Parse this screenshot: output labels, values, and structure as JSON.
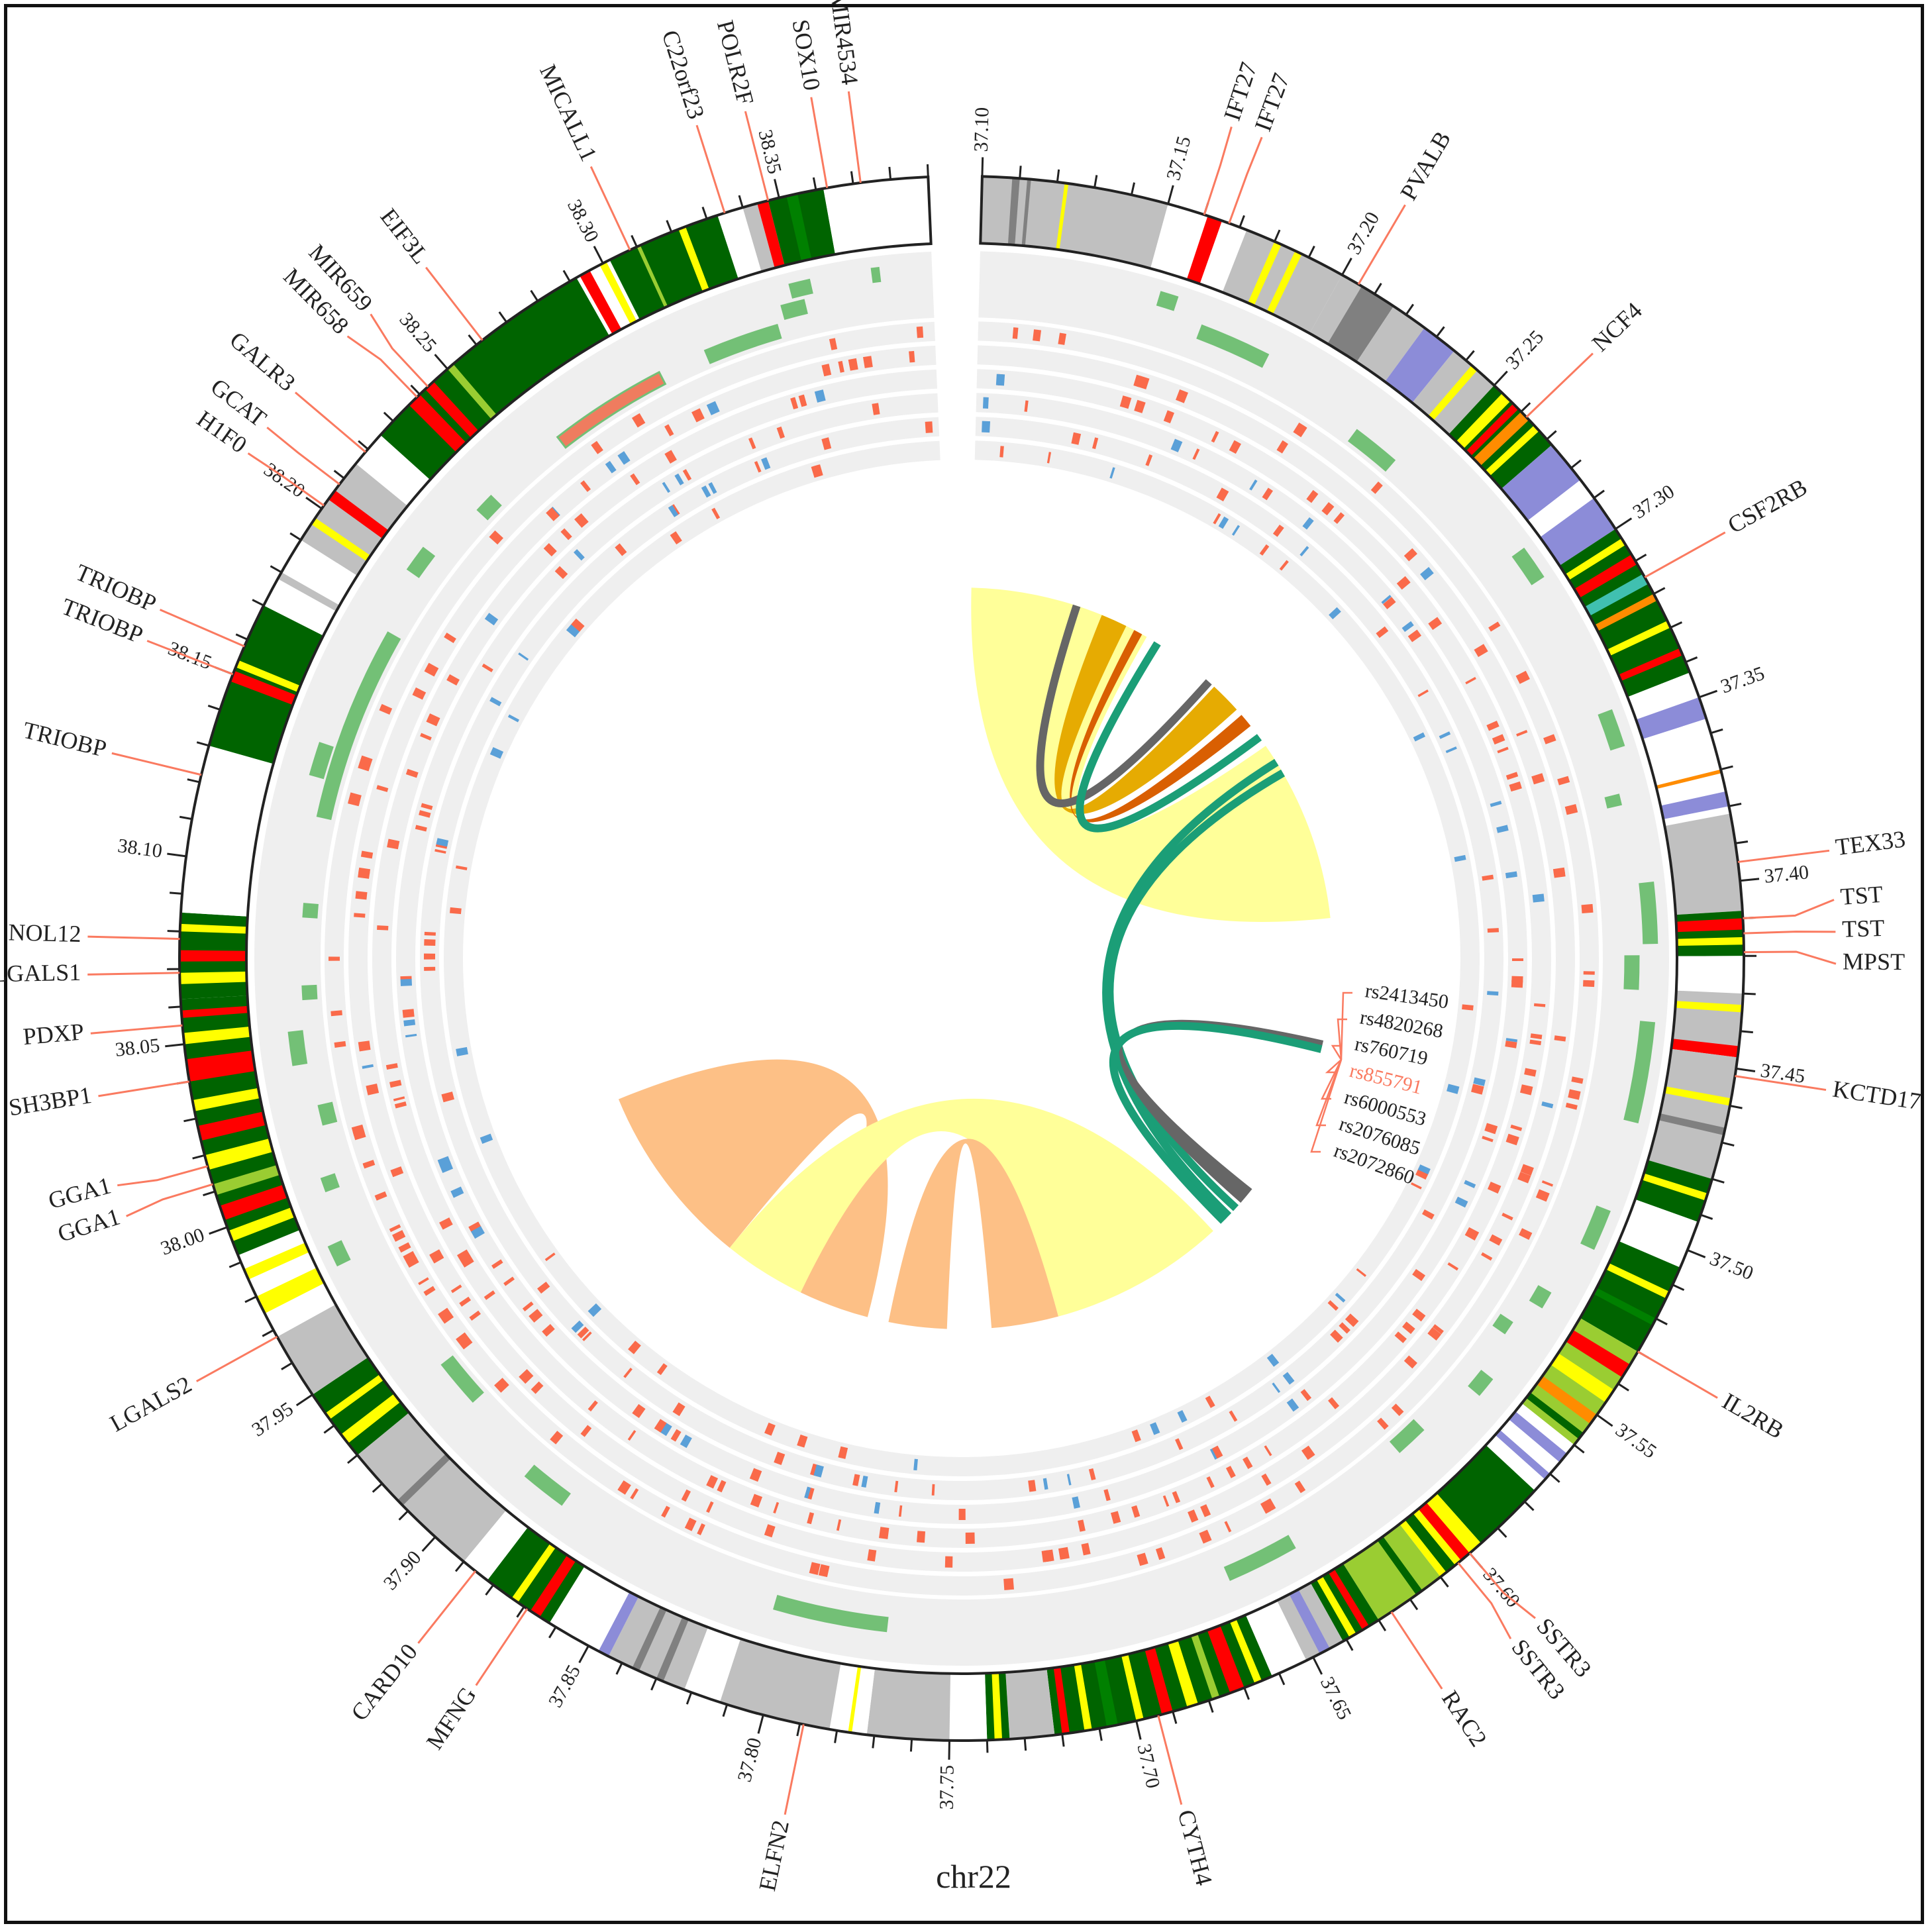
{
  "chromosome": "chr22",
  "axis": {
    "start": 37.1,
    "end": 38.39,
    "tick_step": 0.01,
    "label_step": 0.05,
    "tick_labels": [
      "37.10",
      "37.15",
      "37.20",
      "37.25",
      "37.30",
      "37.35",
      "37.40",
      "37.45",
      "37.50",
      "37.55",
      "37.60",
      "37.65",
      "37.70",
      "37.75",
      "37.80",
      "37.85",
      "37.90",
      "37.95",
      "38.00",
      "38.05",
      "38.10",
      "38.15",
      "38.20",
      "38.25",
      "38.30",
      "38.35"
    ]
  },
  "colors": {
    "gray": "#c0c0c0",
    "darkgray": "#808080",
    "white": "#ffffff",
    "green": "#006400",
    "green2": "#008000",
    "lime": "#9acd32",
    "yellow": "#ffff00",
    "red": "#ff0000",
    "orange": "#ff8c00",
    "blue": "#8c8cd8",
    "teal": "#40c0b0",
    "track_bg": "#efefef",
    "highlight_bar": "#66bb6a",
    "snv_red": "#fa6a4a",
    "snv_blue": "#5aa0d8",
    "label_line": "#fa7a60"
  },
  "genes": [
    {
      "name": "IFT27",
      "pos": 37.16
    },
    {
      "name": "IFT27",
      "pos": 37.167
    },
    {
      "name": "PVALB",
      "pos": 37.205
    },
    {
      "name": "NCF4",
      "pos": 37.262
    },
    {
      "name": "CSF2RB",
      "pos": 37.315
    },
    {
      "name": "TEX33",
      "pos": 37.395
    },
    {
      "name": "TST",
      "pos": 37.41
    },
    {
      "name": "TST",
      "pos": 37.414
    },
    {
      "name": "MPST",
      "pos": 37.419
    },
    {
      "name": "KCTD17",
      "pos": 37.452
    },
    {
      "name": "IL2RB",
      "pos": 37.53
    },
    {
      "name": "SSTR3",
      "pos": 37.6
    },
    {
      "name": "SSTR3",
      "pos": 37.604
    },
    {
      "name": "RAC2",
      "pos": 37.626
    },
    {
      "name": "CYTH4",
      "pos": 37.694
    },
    {
      "name": "ELFN2",
      "pos": 37.789
    },
    {
      "name": "MFNG",
      "pos": 37.869
    },
    {
      "name": "CARD10",
      "pos": 37.886
    },
    {
      "name": "LGALS2",
      "pos": 37.968
    },
    {
      "name": "GGA1",
      "pos": 38.012
    },
    {
      "name": "GGA1",
      "pos": 38.017
    },
    {
      "name": "SH3BP1",
      "pos": 38.04
    },
    {
      "name": "PDXP",
      "pos": 38.055
    },
    {
      "name": "LGALS1",
      "pos": 38.069
    },
    {
      "name": "NOL12",
      "pos": 38.078
    },
    {
      "name": "TRIOBP",
      "pos": 38.122
    },
    {
      "name": "TRIOBP",
      "pos": 38.15
    },
    {
      "name": "TRIOBP",
      "pos": 38.158
    },
    {
      "name": "H1F0",
      "pos": 38.201
    },
    {
      "name": "GCAT",
      "pos": 38.208
    },
    {
      "name": "GALR3",
      "pos": 38.219
    },
    {
      "name": "MIR658",
      "pos": 38.239
    },
    {
      "name": "MIR659",
      "pos": 38.243
    },
    {
      "name": "EIF3L",
      "pos": 38.262
    },
    {
      "name": "MICALL1",
      "pos": 38.308
    },
    {
      "name": "C22orf23",
      "pos": 38.335
    },
    {
      "name": "POLR2F",
      "pos": 38.347
    },
    {
      "name": "SOX10",
      "pos": 38.363
    },
    {
      "name": "MIR4534",
      "pos": 38.372
    }
  ],
  "bands": [
    [
      37.1,
      37.15,
      "gray"
    ],
    [
      37.108,
      37.11,
      "darkgray"
    ],
    [
      37.112,
      37.113,
      "darkgray"
    ],
    [
      37.122,
      37.123,
      "yellow"
    ],
    [
      37.15,
      37.172,
      "white"
    ],
    [
      37.161,
      37.165,
      "red"
    ],
    [
      37.172,
      37.2,
      "gray"
    ],
    [
      37.18,
      37.182,
      "yellow"
    ],
    [
      37.186,
      37.188,
      "yellow"
    ],
    [
      37.2,
      37.206,
      "gray"
    ],
    [
      37.206,
      37.216,
      "darkgray"
    ],
    [
      37.216,
      37.226,
      "gray"
    ],
    [
      37.226,
      37.236,
      "blue"
    ],
    [
      37.236,
      37.25,
      "gray"
    ],
    [
      37.242,
      37.244,
      "yellow"
    ],
    [
      37.25,
      37.272,
      "green"
    ],
    [
      37.253,
      37.256,
      "yellow"
    ],
    [
      37.257,
      37.259,
      "red"
    ],
    [
      37.26,
      37.263,
      "orange"
    ],
    [
      37.265,
      37.267,
      "yellow"
    ],
    [
      37.272,
      37.284,
      "blue"
    ],
    [
      37.284,
      37.29,
      "white"
    ],
    [
      37.29,
      37.3,
      "blue"
    ],
    [
      37.3,
      37.343,
      "green"
    ],
    [
      37.303,
      37.305,
      "yellow"
    ],
    [
      37.308,
      37.311,
      "red"
    ],
    [
      37.314,
      37.317,
      "teal"
    ],
    [
      37.32,
      37.322,
      "orange"
    ],
    [
      37.328,
      37.33,
      "yellow"
    ],
    [
      37.336,
      37.338,
      "red"
    ],
    [
      37.343,
      37.35,
      "white"
    ],
    [
      37.35,
      37.356,
      "blue"
    ],
    [
      37.356,
      37.382,
      "white"
    ],
    [
      37.37,
      37.371,
      "orange"
    ],
    [
      37.376,
      37.38,
      "blue"
    ],
    [
      37.382,
      37.408,
      "gray"
    ],
    [
      37.408,
      37.42,
      "green"
    ],
    [
      37.41,
      37.413,
      "red"
    ],
    [
      37.415,
      37.417,
      "yellow"
    ],
    [
      37.42,
      37.43,
      "white"
    ],
    [
      37.43,
      37.445,
      "gray"
    ],
    [
      37.433,
      37.435,
      "yellow"
    ],
    [
      37.444,
      37.447,
      "red"
    ],
    [
      37.447,
      37.48,
      "gray"
    ],
    [
      37.458,
      37.46,
      "yellow"
    ],
    [
      37.466,
      37.468,
      "darkgray"
    ],
    [
      37.48,
      37.492,
      "green"
    ],
    [
      37.484,
      37.486,
      "yellow"
    ],
    [
      37.492,
      37.505,
      "white"
    ],
    [
      37.505,
      37.53,
      "green"
    ],
    [
      37.512,
      37.514,
      "yellow"
    ],
    [
      37.52,
      37.522,
      "green2"
    ],
    [
      37.53,
      37.56,
      "lime"
    ],
    [
      37.534,
      37.538,
      "red"
    ],
    [
      37.542,
      37.546,
      "yellow"
    ],
    [
      37.55,
      37.553,
      "orange"
    ],
    [
      37.556,
      37.558,
      "green"
    ],
    [
      37.56,
      37.576,
      "white"
    ],
    [
      37.563,
      37.566,
      "blue"
    ],
    [
      37.57,
      37.572,
      "blue"
    ],
    [
      37.576,
      37.596,
      "green"
    ],
    [
      37.596,
      37.61,
      "yellow"
    ],
    [
      37.6,
      37.603,
      "red"
    ],
    [
      37.605,
      37.608,
      "green"
    ],
    [
      37.61,
      37.63,
      "lime"
    ],
    [
      37.616,
      37.618,
      "green"
    ],
    [
      37.63,
      37.641,
      "green"
    ],
    [
      37.633,
      37.635,
      "red"
    ],
    [
      37.637,
      37.639,
      "yellow"
    ],
    [
      37.641,
      37.652,
      "gray"
    ],
    [
      37.645,
      37.648,
      "blue"
    ],
    [
      37.652,
      37.662,
      "white"
    ],
    [
      37.662,
      37.722,
      "green"
    ],
    [
      37.665,
      37.667,
      "yellow"
    ],
    [
      37.67,
      37.674,
      "red"
    ],
    [
      37.677,
      37.679,
      "lime"
    ],
    [
      37.683,
      37.686,
      "yellow"
    ],
    [
      37.69,
      37.693,
      "red"
    ],
    [
      37.698,
      37.7,
      "yellow"
    ],
    [
      37.705,
      37.708,
      "green2"
    ],
    [
      37.712,
      37.714,
      "yellow"
    ],
    [
      37.718,
      37.72,
      "red"
    ],
    [
      37.722,
      37.734,
      "gray"
    ],
    [
      37.734,
      37.74,
      "green"
    ],
    [
      37.736,
      37.738,
      "yellow"
    ],
    [
      37.74,
      37.75,
      "white"
    ],
    [
      37.75,
      37.772,
      "gray"
    ],
    [
      37.772,
      37.782,
      "white"
    ],
    [
      37.776,
      37.777,
      "yellow"
    ],
    [
      37.782,
      37.812,
      "gray"
    ],
    [
      37.812,
      37.822,
      "white"
    ],
    [
      37.822,
      37.844,
      "gray"
    ],
    [
      37.828,
      37.83,
      "darkgray"
    ],
    [
      37.835,
      37.837,
      "darkgray"
    ],
    [
      37.844,
      37.847,
      "blue"
    ],
    [
      37.847,
      37.862,
      "white"
    ],
    [
      37.862,
      37.882,
      "green"
    ],
    [
      37.865,
      37.868,
      "red"
    ],
    [
      37.872,
      37.874,
      "yellow"
    ],
    [
      37.882,
      37.89,
      "white"
    ],
    [
      37.89,
      37.93,
      "gray"
    ],
    [
      37.912,
      37.914,
      "darkgray"
    ],
    [
      37.93,
      37.95,
      "green"
    ],
    [
      37.934,
      37.937,
      "yellow"
    ],
    [
      37.942,
      37.944,
      "yellow"
    ],
    [
      37.95,
      37.968,
      "gray"
    ],
    [
      37.968,
      37.992,
      "white"
    ],
    [
      37.975,
      37.98,
      "yellow"
    ],
    [
      37.985,
      37.988,
      "yellow"
    ],
    [
      37.992,
      38.062,
      "green"
    ],
    [
      37.996,
      37.999,
      "yellow"
    ],
    [
      38.002,
      38.006,
      "red"
    ],
    [
      38.009,
      38.012,
      "lime"
    ],
    [
      38.016,
      38.02,
      "yellow"
    ],
    [
      38.024,
      38.028,
      "red"
    ],
    [
      38.032,
      38.035,
      "yellow"
    ],
    [
      38.04,
      38.046,
      "red"
    ],
    [
      38.05,
      38.053,
      "yellow"
    ],
    [
      38.057,
      38.059,
      "red"
    ],
    [
      38.062,
      38.085,
      "green"
    ],
    [
      38.066,
      38.069,
      "yellow"
    ],
    [
      38.072,
      38.075,
      "red"
    ],
    [
      38.08,
      38.082,
      "yellow"
    ],
    [
      38.085,
      38.13,
      "white"
    ],
    [
      38.13,
      38.17,
      "green"
    ],
    [
      38.148,
      38.151,
      "red"
    ],
    [
      38.152,
      38.154,
      "yellow"
    ],
    [
      38.17,
      38.19,
      "white"
    ],
    [
      38.178,
      38.18,
      "gray"
    ],
    [
      38.19,
      38.215,
      "gray"
    ],
    [
      38.195,
      38.197,
      "yellow"
    ],
    [
      38.203,
      38.206,
      "red"
    ],
    [
      38.215,
      38.225,
      "white"
    ],
    [
      38.225,
      38.292,
      "green"
    ],
    [
      38.236,
      38.24,
      "red"
    ],
    [
      38.242,
      38.245,
      "red"
    ],
    [
      38.25,
      38.252,
      "lime"
    ],
    [
      38.292,
      38.302,
      "white"
    ],
    [
      38.293,
      38.296,
      "red"
    ],
    [
      38.299,
      38.301,
      "yellow"
    ],
    [
      38.302,
      38.333,
      "green"
    ],
    [
      38.31,
      38.311,
      "lime"
    ],
    [
      38.322,
      38.324,
      "yellow"
    ],
    [
      38.333,
      38.34,
      "white"
    ],
    [
      38.34,
      38.344,
      "gray"
    ],
    [
      38.344,
      38.347,
      "red"
    ],
    [
      38.347,
      38.362,
      "green"
    ],
    [
      38.352,
      38.355,
      "green2"
    ],
    [
      38.362,
      38.39,
      "white"
    ]
  ],
  "highlight_bars": [
    [
      37.155,
      37.16,
      0
    ],
    [
      37.17,
      37.192,
      1
    ],
    [
      37.228,
      37.243,
      2
    ],
    [
      37.29,
      37.3,
      0
    ],
    [
      37.345,
      37.356,
      0
    ],
    [
      37.37,
      37.373,
      1
    ],
    [
      37.398,
      37.416,
      0
    ],
    [
      37.42,
      37.43,
      1
    ],
    [
      37.44,
      37.47,
      0
    ],
    [
      37.498,
      37.51,
      0
    ],
    [
      37.528,
      37.533,
      1
    ],
    [
      37.542,
      37.546,
      2
    ],
    [
      37.56,
      37.566,
      1
    ],
    [
      37.586,
      37.596,
      2
    ],
    [
      37.64,
      37.662,
      1
    ],
    [
      37.77,
      37.805,
      1
    ],
    [
      37.878,
      37.892,
      1
    ],
    [
      37.92,
      37.935,
      2
    ],
    [
      37.978,
      37.984,
      0
    ],
    [
      38.0,
      38.004,
      1
    ],
    [
      38.02,
      38.026,
      2
    ],
    [
      38.04,
      38.05,
      1
    ],
    [
      38.06,
      38.064,
      2
    ],
    [
      38.086,
      38.09,
      2
    ],
    [
      38.118,
      38.18,
      2
    ],
    [
      38.13,
      38.14,
      1
    ],
    [
      38.2,
      38.208,
      1
    ],
    [
      38.228,
      38.234,
      2
    ],
    [
      38.262,
      38.3,
      2
    ],
    [
      38.316,
      38.34,
      2
    ],
    [
      38.343,
      38.35,
      1
    ],
    [
      38.347,
      38.353,
      0
    ],
    [
      38.372,
      38.374,
      0
    ]
  ],
  "links": [
    {
      "type": "ribbon",
      "color": "#ffff99",
      "a": [
        37.1,
        37.203
      ],
      "b": [
        37.294,
        37.398
      ]
    },
    {
      "type": "ribbon",
      "color": "#e6ab02",
      "a": [
        37.25,
        37.268
      ],
      "b": [
        37.175,
        37.19
      ]
    },
    {
      "type": "ribbon",
      "color": "#d95f02",
      "a": [
        37.272,
        37.28
      ],
      "b": [
        37.195,
        37.2
      ]
    },
    {
      "type": "line",
      "color": "#666666",
      "a": 37.246,
      "b": 37.16
    },
    {
      "type": "line",
      "color": "#1b9e77",
      "a": 37.288,
      "b": 37.21
    },
    {
      "type": "line",
      "color": "#1b9e77",
      "a": 37.305,
      "b": 37.58
    },
    {
      "type": "line",
      "color": "#1b9e77",
      "a": 37.312,
      "b": 37.574
    },
    {
      "type": "ribbon",
      "color": "#666666",
      "a": [
        37.467,
        37.474
      ],
      "b": [
        37.56,
        37.57
      ]
    },
    {
      "type": "line",
      "color": "#1b9e77",
      "a": 37.472,
      "b": 37.584
    },
    {
      "type": "ribbon",
      "color": "#fdc086",
      "a": [
        37.887,
        37.992
      ],
      "b": [
        37.8,
        37.84
      ]
    },
    {
      "type": "ribbon",
      "color": "#ffff99",
      "a": [
        37.84,
        37.887
      ],
      "b": [
        37.592,
        37.692
      ]
    },
    {
      "type": "ribbon",
      "color": "#fdc086",
      "a": [
        37.692,
        37.73
      ],
      "b": [
        37.755,
        37.788
      ]
    }
  ],
  "snps": [
    {
      "id": "rs2413450",
      "highlight": false
    },
    {
      "id": "rs4820268",
      "highlight": false
    },
    {
      "id": "rs760719",
      "highlight": false
    },
    {
      "id": "rs855791",
      "highlight": true
    },
    {
      "id": "rs6000553",
      "highlight": false
    },
    {
      "id": "rs2076085",
      "highlight": false
    },
    {
      "id": "rs2072860",
      "highlight": false
    }
  ]
}
